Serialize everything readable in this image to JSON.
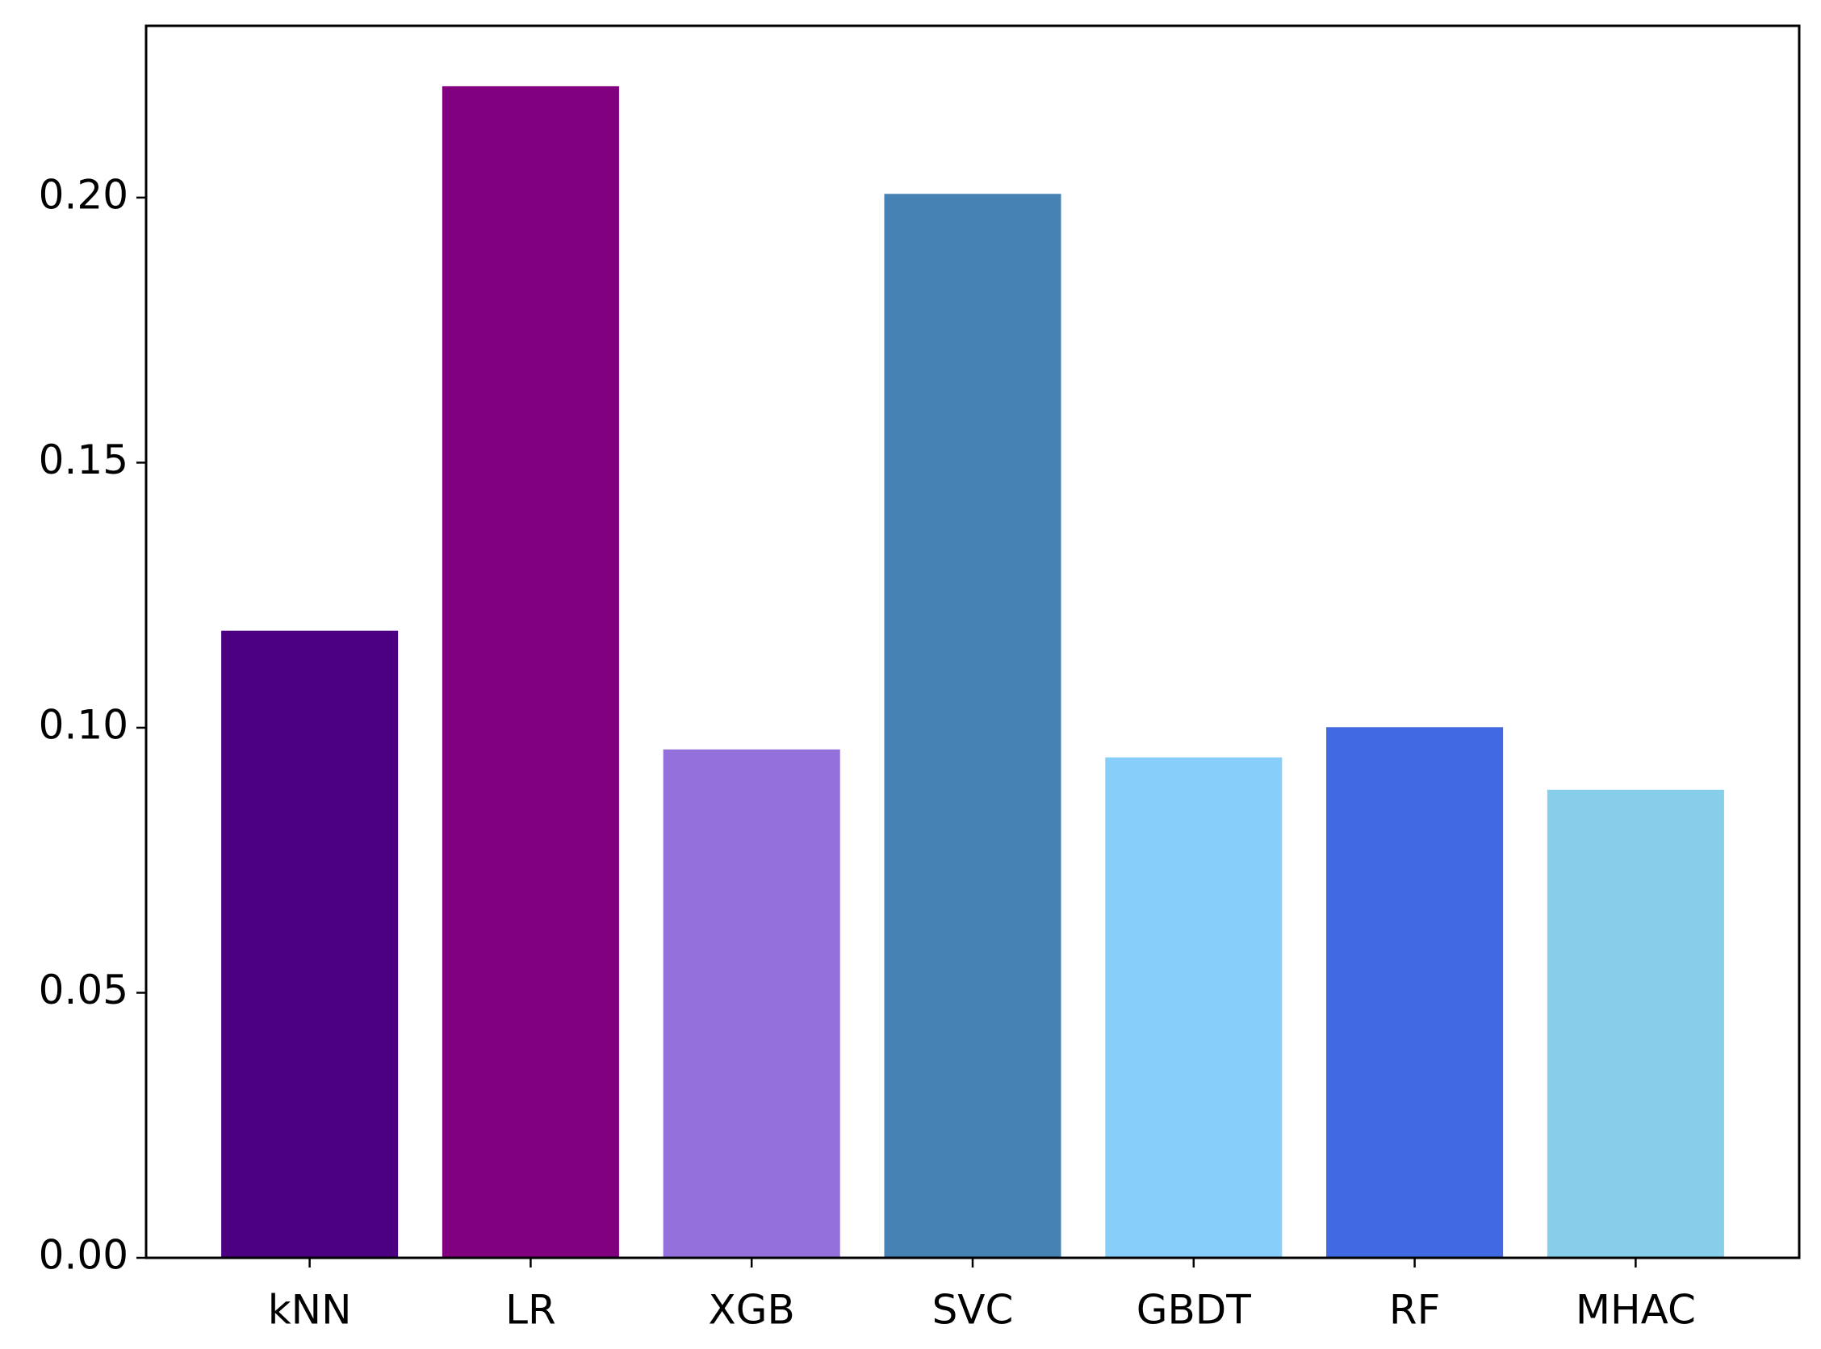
{
  "chart_data": {
    "type": "bar",
    "categories": [
      "kNN",
      "LR",
      "XGB",
      "SVC",
      "GBDT",
      "RF",
      "MHAC"
    ],
    "values": [
      0.1183,
      0.221,
      0.0959,
      0.2007,
      0.0944,
      0.1001,
      0.0883
    ],
    "colors": [
      "#4b0082",
      "#800080",
      "#9370db",
      "#4682b4",
      "#87cefa",
      "#4169e1",
      "#87ceeb"
    ],
    "ylim": [
      0,
      0.2324
    ],
    "yticks": [
      {
        "value": 0,
        "label": "0.00"
      },
      0.05,
      {
        "value": 0.1,
        "label": "0.10"
      },
      0.15,
      {
        "value": 0.2,
        "label": "0.20"
      }
    ],
    "grid": false
  }
}
